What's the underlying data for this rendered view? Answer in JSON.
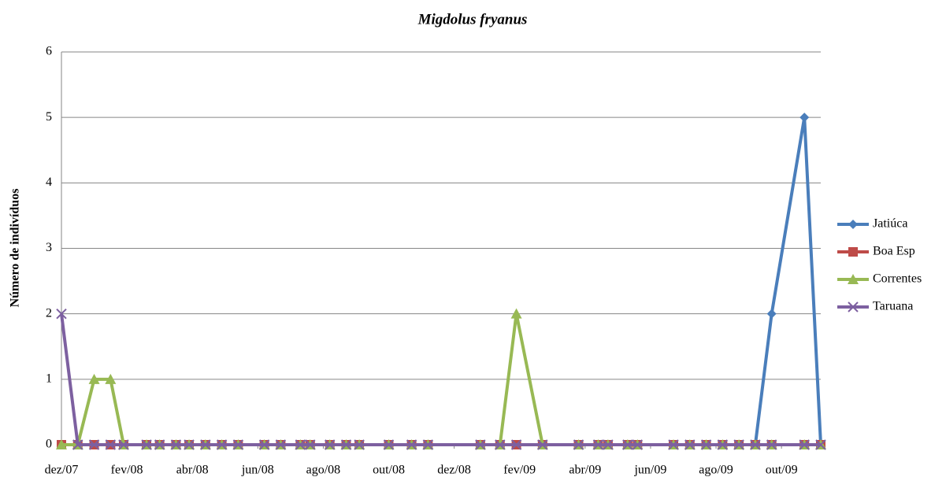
{
  "chart_data": {
    "type": "line",
    "title": "Migdolus fryanus",
    "y_label": "Número de indivíduos",
    "x": [
      0,
      0.5,
      1.0,
      1.5,
      1.9,
      2.6,
      3.0,
      3.5,
      3.9,
      4.4,
      4.9,
      5.4,
      6.2,
      6.7,
      7.3,
      7.6,
      8.2,
      8.7,
      9.1,
      10.0,
      10.7,
      11.2,
      12.8,
      13.4,
      13.9,
      14.7,
      15.8,
      16.4,
      16.7,
      17.3,
      17.6,
      18.7,
      19.2,
      19.7,
      20.2,
      20.7,
      21.2,
      21.7,
      22.7,
      23.2
    ],
    "series": [
      {
        "name": "Jatiúca",
        "color": "#4a7ebb",
        "marker": "diamond",
        "values": [
          0,
          0,
          0,
          0,
          0,
          0,
          0,
          0,
          0,
          0,
          0,
          0,
          0,
          0,
          0,
          0,
          0,
          0,
          0,
          0,
          0,
          0,
          0,
          0,
          0,
          0,
          0,
          0,
          0,
          0,
          0,
          0,
          0,
          0,
          0,
          0,
          0,
          2,
          5,
          0
        ]
      },
      {
        "name": "Boa Esp",
        "color": "#be4b48",
        "marker": "square",
        "values": [
          0,
          0,
          0,
          0,
          0,
          0,
          0,
          0,
          0,
          0,
          0,
          0,
          0,
          0,
          0,
          0,
          0,
          0,
          0,
          0,
          0,
          0,
          0,
          0,
          0,
          0,
          0,
          0,
          0,
          0,
          0,
          0,
          0,
          0,
          0,
          0,
          0,
          0,
          0,
          0
        ]
      },
      {
        "name": "Correntes",
        "color": "#98b954",
        "marker": "triangle",
        "values": [
          0,
          0,
          1,
          1,
          0,
          0,
          0,
          0,
          0,
          0,
          0,
          0,
          0,
          0,
          0,
          0,
          0,
          0,
          0,
          0,
          0,
          0,
          0,
          0,
          2,
          0,
          0,
          0,
          0,
          0,
          0,
          0,
          0,
          0,
          0,
          0,
          0,
          0,
          0,
          0
        ]
      },
      {
        "name": "Taruana",
        "color": "#7d60a0",
        "marker": "x",
        "values": [
          2,
          0,
          0,
          0,
          0,
          0,
          0,
          0,
          0,
          0,
          0,
          0,
          0,
          0,
          0,
          0,
          0,
          0,
          0,
          0,
          0,
          0,
          0,
          0,
          0,
          0,
          0,
          0,
          0,
          0,
          0,
          0,
          0,
          0,
          0,
          0,
          0,
          0,
          0,
          0
        ]
      }
    ],
    "xlim": [
      0,
      23.2
    ],
    "xticks": [
      {
        "value": 0,
        "label": "dez/07"
      },
      {
        "value": 2,
        "label": "fev/08"
      },
      {
        "value": 4,
        "label": "abr/08"
      },
      {
        "value": 6,
        "label": "jun/08"
      },
      {
        "value": 8,
        "label": "ago/08"
      },
      {
        "value": 10,
        "label": "out/08"
      },
      {
        "value": 12,
        "label": "dez/08"
      },
      {
        "value": 14,
        "label": "fev/09"
      },
      {
        "value": 16,
        "label": "abr/09"
      },
      {
        "value": 18,
        "label": "jun/09"
      },
      {
        "value": 20,
        "label": "ago/09"
      },
      {
        "value": 22,
        "label": "out/09"
      }
    ],
    "ylim": [
      0,
      6
    ],
    "yticks": [
      0,
      1,
      2,
      3,
      4,
      5,
      6
    ],
    "grid": true,
    "legend": "right"
  }
}
